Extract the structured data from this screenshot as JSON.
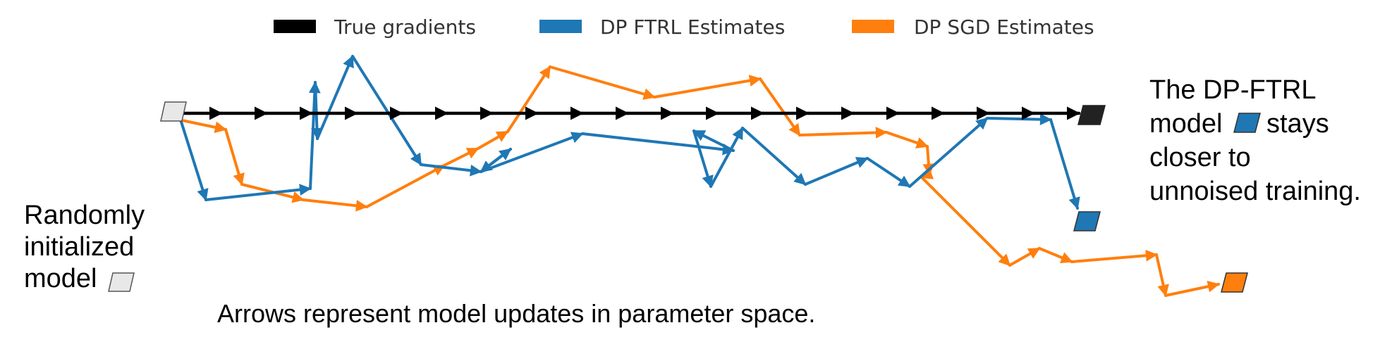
{
  "legend": {
    "true_label": "True gradients",
    "ftrl_label": "DP FTRL Estimates",
    "sgd_label": "DP SGD Estimates"
  },
  "left_note": {
    "line1": "Randomly",
    "line2": "initialized",
    "line3": "model"
  },
  "right_note": {
    "line1": "The DP-FTRL",
    "line2": "model",
    "line2b": "stays",
    "line3": "closer to",
    "line4": "unnoised training."
  },
  "caption": "Arrows represent model updates in parameter space.",
  "colors": {
    "true": "#000000",
    "ftrl": "#1f77b4",
    "sgd": "#ff7f0e",
    "init_fill": "#e8e8e8",
    "final_true": "#222222"
  },
  "icons": {
    "init": "parallelogram-model-icon",
    "true_final": "parallelogram-model-icon",
    "ftrl_final": "parallelogram-model-icon",
    "sgd_final": "parallelogram-model-icon"
  }
}
